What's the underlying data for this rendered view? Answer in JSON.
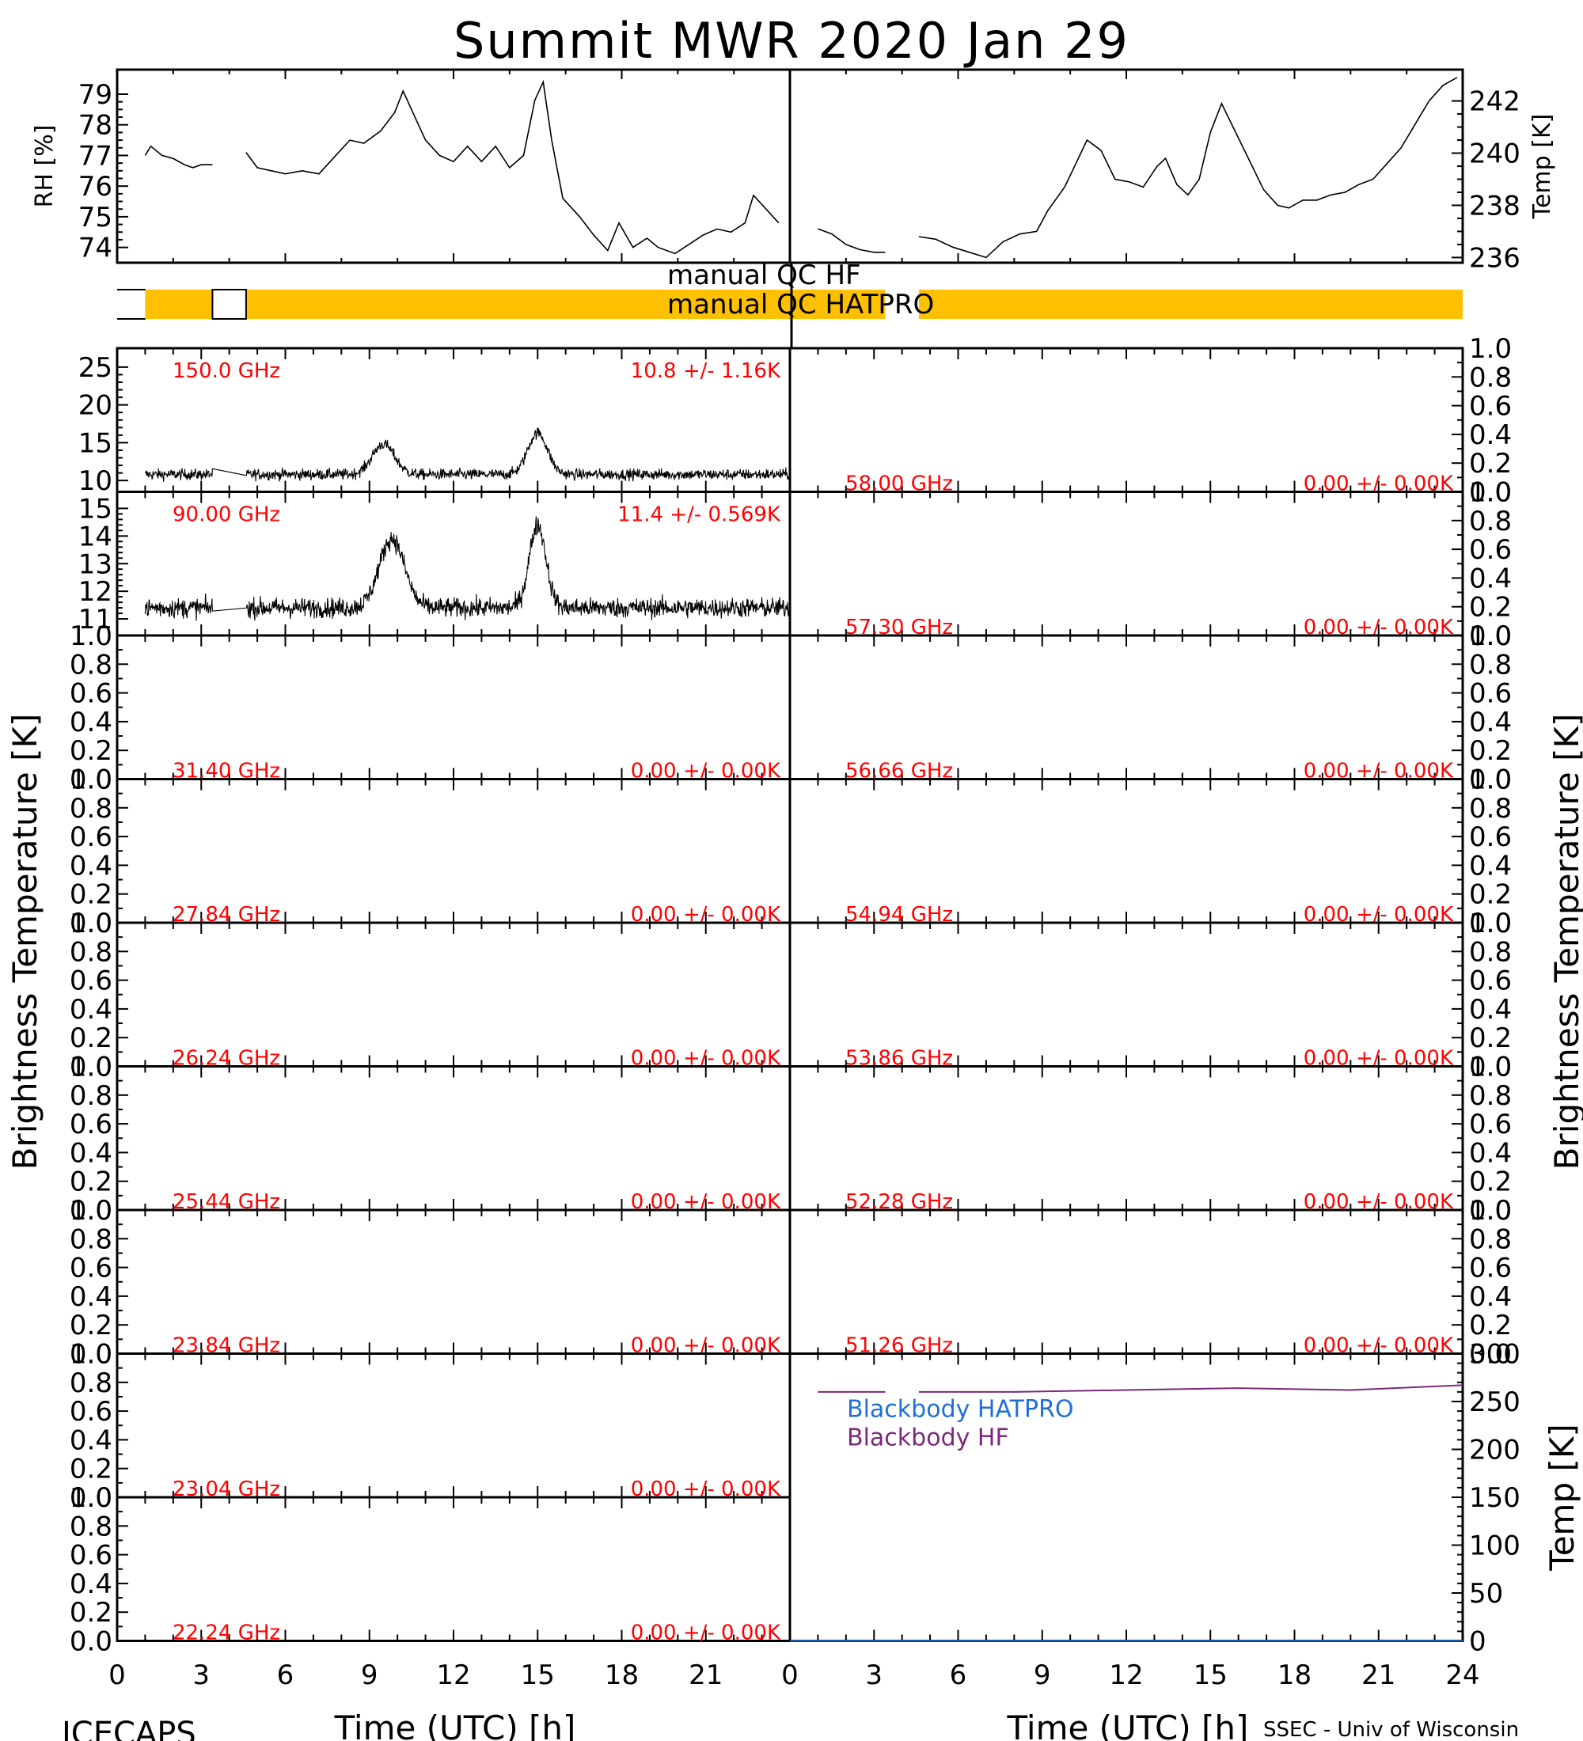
{
  "page": {
    "title": "Summit MWR 2020 Jan 29",
    "footer_left": "ICECAPS",
    "footer_right": "SSEC - Univ of Wisconsin",
    "xlabel": "Time (UTC) [h]",
    "ylabel_bt": "Brightness Temperature [K]"
  },
  "qc": {
    "hf_label": "manual QC HF",
    "hatpro_label": "manual QC HATPRO",
    "color": "#ffc000"
  },
  "chart_data": [
    {
      "id": "met",
      "type": "line",
      "x_range": [
        0,
        24
      ],
      "x_ticks": [
        0,
        3,
        6,
        9,
        12,
        15,
        18,
        21
      ],
      "series": [
        {
          "axis": "left",
          "ylabel": "RH [%]",
          "ylim": [
            73.5,
            79.8
          ],
          "y_ticks": [
            74,
            75,
            76,
            77,
            78,
            79
          ],
          "color": "#000000",
          "points": [
            [
              1.0,
              77.0
            ],
            [
              1.2,
              77.3
            ],
            [
              1.6,
              77.0
            ],
            [
              2.0,
              76.9
            ],
            [
              2.4,
              76.7
            ],
            [
              2.7,
              76.6
            ],
            [
              3.0,
              76.7
            ],
            [
              3.4,
              76.7
            ],
            [
              4.6,
              77.1
            ],
            [
              5.0,
              76.6
            ],
            [
              5.5,
              76.5
            ],
            [
              6.0,
              76.4
            ],
            [
              6.6,
              76.5
            ],
            [
              7.2,
              76.4
            ],
            [
              7.7,
              76.9
            ],
            [
              8.3,
              77.5
            ],
            [
              8.8,
              77.4
            ],
            [
              9.4,
              77.8
            ],
            [
              9.9,
              78.4
            ],
            [
              10.2,
              79.1
            ],
            [
              10.6,
              78.3
            ],
            [
              11.0,
              77.5
            ],
            [
              11.5,
              77.0
            ],
            [
              12.0,
              76.8
            ],
            [
              12.5,
              77.3
            ],
            [
              13.0,
              76.8
            ],
            [
              13.5,
              77.3
            ],
            [
              14.0,
              76.6
            ],
            [
              14.5,
              77.0
            ],
            [
              14.9,
              78.8
            ],
            [
              15.2,
              79.4
            ],
            [
              15.5,
              77.5
            ],
            [
              15.9,
              75.6
            ],
            [
              16.5,
              75.0
            ],
            [
              17.0,
              74.4
            ],
            [
              17.5,
              73.9
            ],
            [
              17.9,
              74.8
            ],
            [
              18.4,
              74.0
            ],
            [
              18.9,
              74.3
            ],
            [
              19.3,
              74.0
            ],
            [
              19.9,
              73.8
            ],
            [
              20.4,
              74.1
            ],
            [
              20.9,
              74.4
            ],
            [
              21.4,
              74.6
            ],
            [
              21.9,
              74.5
            ],
            [
              22.4,
              74.8
            ],
            [
              22.7,
              75.7
            ],
            [
              23.2,
              75.2
            ],
            [
              23.6,
              74.8
            ]
          ]
        },
        {
          "axis": "right",
          "ylabel": "Temp [K]",
          "ylim": [
            235.8,
            243.2
          ],
          "y_ticks": [
            236,
            238,
            240,
            242
          ],
          "color": "#000000",
          "points": [
            [
              1.0,
              237.1
            ],
            [
              1.5,
              236.9
            ],
            [
              2.0,
              236.5
            ],
            [
              2.5,
              236.3
            ],
            [
              3.0,
              236.2
            ],
            [
              3.4,
              236.2
            ],
            [
              4.6,
              236.8
            ],
            [
              5.2,
              236.7
            ],
            [
              5.8,
              236.4
            ],
            [
              6.4,
              236.2
            ],
            [
              7.0,
              236.0
            ],
            [
              7.6,
              236.6
            ],
            [
              8.2,
              236.9
            ],
            [
              8.8,
              237.0
            ],
            [
              9.2,
              237.8
            ],
            [
              9.8,
              238.7
            ],
            [
              10.2,
              239.6
            ],
            [
              10.6,
              240.5
            ],
            [
              11.1,
              240.1
            ],
            [
              11.6,
              239.0
            ],
            [
              12.1,
              238.9
            ],
            [
              12.6,
              238.7
            ],
            [
              13.1,
              239.5
            ],
            [
              13.4,
              239.8
            ],
            [
              13.8,
              238.8
            ],
            [
              14.2,
              238.4
            ],
            [
              14.6,
              239.0
            ],
            [
              15.0,
              240.8
            ],
            [
              15.4,
              241.9
            ],
            [
              15.9,
              240.8
            ],
            [
              16.4,
              239.7
            ],
            [
              16.9,
              238.6
            ],
            [
              17.4,
              238.0
            ],
            [
              17.8,
              237.9
            ],
            [
              18.3,
              238.2
            ],
            [
              18.8,
              238.2
            ],
            [
              19.3,
              238.4
            ],
            [
              19.8,
              238.5
            ],
            [
              20.3,
              238.8
            ],
            [
              20.8,
              239.0
            ],
            [
              21.3,
              239.6
            ],
            [
              21.8,
              240.2
            ],
            [
              22.3,
              241.1
            ],
            [
              22.8,
              242.0
            ],
            [
              23.3,
              242.6
            ],
            [
              23.8,
              242.9
            ]
          ]
        }
      ]
    },
    {
      "id": "qc_bars",
      "type": "bar",
      "series": [
        {
          "name": "manual QC HF",
          "segments": []
        },
        {
          "name": "manual QC HATPRO",
          "segments": [
            [
              1.0,
              3.4
            ],
            [
              4.6,
              24.0
            ]
          ]
        }
      ],
      "second_half_segments": [
        [
          0,
          3.4
        ],
        [
          4.6,
          24
        ]
      ]
    },
    {
      "id": "bt_left",
      "type": "line",
      "x_range": [
        0,
        24
      ],
      "panels": [
        {
          "freq": "150.0 GHz",
          "stat": "10.8 +/-  1.16K",
          "ylim": [
            8.5,
            27.5
          ],
          "y_ticks": [
            10,
            15,
            20,
            25
          ],
          "mean": 10.8,
          "noise": 1.16,
          "peaks": [
            [
              9.5,
              4.0,
              0.4
            ],
            [
              15.0,
              5.5,
              0.35
            ]
          ],
          "gaps": [
            [
              3.4,
              4.6
            ]
          ]
        },
        {
          "freq": "90.00 GHz",
          "stat": "11.4 +/- 0.569K",
          "ylim": [
            10.4,
            15.6
          ],
          "y_ticks": [
            11,
            12,
            13,
            14,
            15
          ],
          "mean": 11.4,
          "noise": 0.569,
          "peaks": [
            [
              9.8,
              2.5,
              0.45
            ],
            [
              15.0,
              3.0,
              0.3
            ]
          ],
          "gaps": [
            [
              3.4,
              4.6
            ]
          ]
        },
        {
          "freq": "31.40 GHz",
          "stat": "0.00 +/-  0.00K",
          "ylim": [
            0,
            1
          ],
          "y_ticks": [
            0.0,
            0.2,
            0.4,
            0.6,
            0.8,
            1.0
          ]
        },
        {
          "freq": "27.84 GHz",
          "stat": "0.00 +/-  0.00K",
          "ylim": [
            0,
            1
          ],
          "y_ticks": [
            0.0,
            0.2,
            0.4,
            0.6,
            0.8,
            1.0
          ]
        },
        {
          "freq": "26.24 GHz",
          "stat": "0.00 +/-  0.00K",
          "ylim": [
            0,
            1
          ],
          "y_ticks": [
            0.0,
            0.2,
            0.4,
            0.6,
            0.8,
            1.0
          ]
        },
        {
          "freq": "25.44 GHz",
          "stat": "0.00 +/-  0.00K",
          "ylim": [
            0,
            1
          ],
          "y_ticks": [
            0.0,
            0.2,
            0.4,
            0.6,
            0.8,
            1.0
          ]
        },
        {
          "freq": "23.84 GHz",
          "stat": "0.00 +/-  0.00K",
          "ylim": [
            0,
            1
          ],
          "y_ticks": [
            0.0,
            0.2,
            0.4,
            0.6,
            0.8,
            1.0
          ]
        },
        {
          "freq": "23.04 GHz",
          "stat": "0.00 +/-  0.00K",
          "ylim": [
            0,
            1
          ],
          "y_ticks": [
            0.0,
            0.2,
            0.4,
            0.6,
            0.8,
            1.0
          ]
        },
        {
          "freq": "22.24 GHz",
          "stat": "0.00 +/-  0.00K",
          "ylim": [
            0,
            1
          ],
          "y_ticks": [
            0.0,
            0.2,
            0.4,
            0.6,
            0.8,
            1.0
          ]
        }
      ]
    },
    {
      "id": "bt_right",
      "type": "line",
      "x_range": [
        0,
        24
      ],
      "panels": [
        {
          "freq": "58.00 GHz",
          "stat": "0.00 +/-  0.00K",
          "ylim": [
            0,
            1
          ],
          "y_ticks": [
            0.0,
            0.2,
            0.4,
            0.6,
            0.8,
            1.0
          ]
        },
        {
          "freq": "57.30 GHz",
          "stat": "0.00 +/-  0.00K",
          "ylim": [
            0,
            1
          ],
          "y_ticks": [
            0.0,
            0.2,
            0.4,
            0.6,
            0.8,
            1.0
          ]
        },
        {
          "freq": "56.66 GHz",
          "stat": "0.00 +/-  0.00K",
          "ylim": [
            0,
            1
          ],
          "y_ticks": [
            0.0,
            0.2,
            0.4,
            0.6,
            0.8,
            1.0
          ]
        },
        {
          "freq": "54.94 GHz",
          "stat": "0.00 +/-  0.00K",
          "ylim": [
            0,
            1
          ],
          "y_ticks": [
            0.0,
            0.2,
            0.4,
            0.6,
            0.8,
            1.0
          ]
        },
        {
          "freq": "53.86 GHz",
          "stat": "0.00 +/-  0.00K",
          "ylim": [
            0,
            1
          ],
          "y_ticks": [
            0.0,
            0.2,
            0.4,
            0.6,
            0.8,
            1.0
          ]
        },
        {
          "freq": "52.28 GHz",
          "stat": "0.00 +/-  0.00K",
          "ylim": [
            0,
            1
          ],
          "y_ticks": [
            0.0,
            0.2,
            0.4,
            0.6,
            0.8,
            1.0
          ]
        },
        {
          "freq": "51.26 GHz",
          "stat": "0.00 +/-  0.00K",
          "ylim": [
            0,
            1
          ],
          "y_ticks": [
            0.0,
            0.2,
            0.4,
            0.6,
            0.8,
            1.0
          ]
        }
      ]
    },
    {
      "id": "blackbody",
      "type": "line",
      "x_range": [
        0,
        24
      ],
      "x_ticks": [
        0,
        3,
        6,
        9,
        12,
        15,
        18,
        21,
        24
      ],
      "ylim": [
        0,
        300
      ],
      "y_ticks": [
        0,
        50,
        100,
        150,
        200,
        250,
        300
      ],
      "ylabel": "Temp [K]",
      "series": [
        {
          "name": "Blackbody HATPRO",
          "color": "#1f6fd6",
          "points": [
            [
              0,
              0
            ],
            [
              24,
              0
            ]
          ]
        },
        {
          "name": "Blackbody HF",
          "color": "#7a2a7a",
          "points": [
            [
              1.0,
              260
            ],
            [
              3.4,
              260
            ],
            [
              4.6,
              260
            ],
            [
              8,
              260
            ],
            [
              12,
              262
            ],
            [
              16,
              264
            ],
            [
              20,
              262
            ],
            [
              24,
              267
            ]
          ]
        }
      ]
    }
  ]
}
